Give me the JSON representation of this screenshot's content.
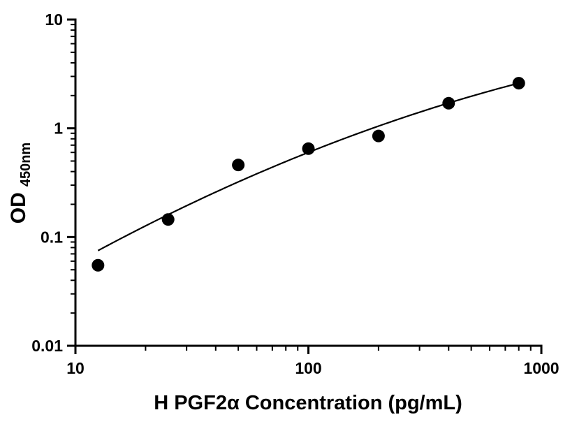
{
  "figure": {
    "background": "#ffffff",
    "accent_color": "#000000"
  },
  "chart_data": {
    "type": "scatter",
    "title": "",
    "xlabel": "H PGF2α Concentration (pg/mL)",
    "ylabel_main": "OD",
    "ylabel_sub": "450nm",
    "x_scale": "log",
    "y_scale": "log",
    "xlim": [
      10,
      1000
    ],
    "ylim": [
      0.01,
      10
    ],
    "grid": false,
    "legend": null,
    "x_ticks": [
      {
        "value": 10,
        "label": "10"
      },
      {
        "value": 100,
        "label": "100"
      },
      {
        "value": 1000,
        "label": "1000"
      }
    ],
    "y_ticks": [
      {
        "value": 0.01,
        "label": "0.01"
      },
      {
        "value": 0.1,
        "label": "0.1"
      },
      {
        "value": 1,
        "label": "1"
      },
      {
        "value": 10,
        "label": "10"
      }
    ],
    "points": {
      "x": [
        12.5,
        25,
        50,
        100,
        200,
        400,
        800
      ],
      "y": [
        0.055,
        0.145,
        0.46,
        0.65,
        0.85,
        1.7,
        2.6
      ]
    },
    "fit_curve": {
      "model": "log10(y) = a + b*log10(x) + c*log10(x)^2",
      "a": -2.58,
      "b": 1.506,
      "c": -0.1634,
      "x_range": [
        12.5,
        800
      ]
    },
    "marker": {
      "shape": "circle",
      "color": "#000000",
      "radius": 9
    },
    "line_color": "#000000"
  }
}
